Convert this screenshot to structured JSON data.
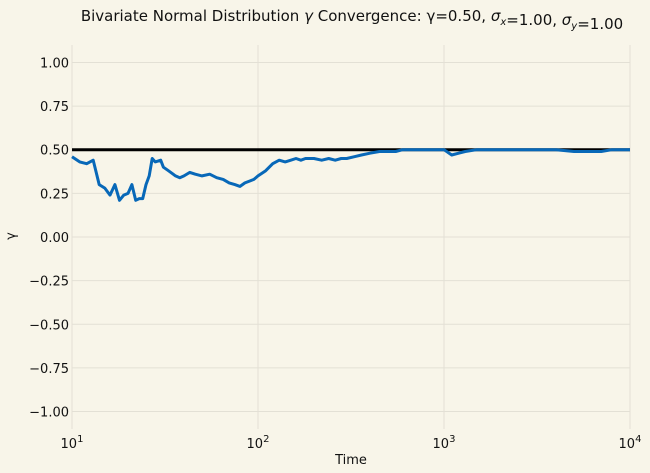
{
  "chart_data": {
    "type": "line",
    "title": "Bivariate Normal Distribution γ Convergence: γ=0.50, σ_x=1.00, σ_y=1.00",
    "xlabel": "Time",
    "ylabel": "γ",
    "xscale": "log",
    "xlim": [
      10,
      10000
    ],
    "ylim": [
      -1.1,
      1.1
    ],
    "xticks": [
      {
        "base": "10",
        "exp": "1"
      },
      {
        "base": "10",
        "exp": "2"
      },
      {
        "base": "10",
        "exp": "3"
      },
      {
        "base": "10",
        "exp": "4"
      }
    ],
    "yticks": [
      "1.00",
      "0.75",
      "0.50",
      "0.25",
      "0.00",
      "−0.25",
      "−0.50",
      "−0.75",
      "−1.00"
    ],
    "grid": true,
    "colors": {
      "background": "#f8f5e9",
      "series": "#0868b8",
      "reference": "#000000"
    },
    "series": [
      {
        "name": "",
        "x": [
          10,
          11,
          12,
          13,
          14,
          15,
          16,
          17,
          18,
          19,
          20,
          21,
          22,
          23,
          24,
          25,
          26,
          27,
          28,
          30,
          31,
          33,
          35,
          36,
          38,
          40,
          43,
          46,
          50,
          55,
          60,
          65,
          70,
          75,
          80,
          85,
          90,
          95,
          100,
          110,
          120,
          130,
          140,
          150,
          160,
          170,
          180,
          200,
          220,
          240,
          260,
          280,
          300,
          330,
          360,
          400,
          450,
          500,
          550,
          600,
          700,
          800,
          900,
          1000,
          1100,
          1200,
          1300,
          1500,
          1800,
          2000,
          2500,
          3000,
          4000,
          5000,
          6000,
          7000,
          8000,
          9000,
          10000
        ],
        "y": [
          0.46,
          0.43,
          0.42,
          0.44,
          0.3,
          0.28,
          0.24,
          0.3,
          0.21,
          0.24,
          0.25,
          0.3,
          0.21,
          0.22,
          0.22,
          0.3,
          0.35,
          0.45,
          0.43,
          0.44,
          0.4,
          0.38,
          0.36,
          0.35,
          0.34,
          0.35,
          0.37,
          0.36,
          0.35,
          0.36,
          0.34,
          0.33,
          0.31,
          0.3,
          0.29,
          0.31,
          0.32,
          0.33,
          0.35,
          0.38,
          0.42,
          0.44,
          0.43,
          0.44,
          0.45,
          0.44,
          0.45,
          0.45,
          0.44,
          0.45,
          0.44,
          0.45,
          0.45,
          0.46,
          0.47,
          0.48,
          0.49,
          0.49,
          0.49,
          0.5,
          0.5,
          0.5,
          0.5,
          0.5,
          0.47,
          0.48,
          0.49,
          0.5,
          0.5,
          0.5,
          0.5,
          0.5,
          0.5,
          0.49,
          0.49,
          0.49,
          0.5,
          0.5,
          0.5
        ]
      }
    ],
    "reference_line": {
      "y": 0.5
    }
  }
}
